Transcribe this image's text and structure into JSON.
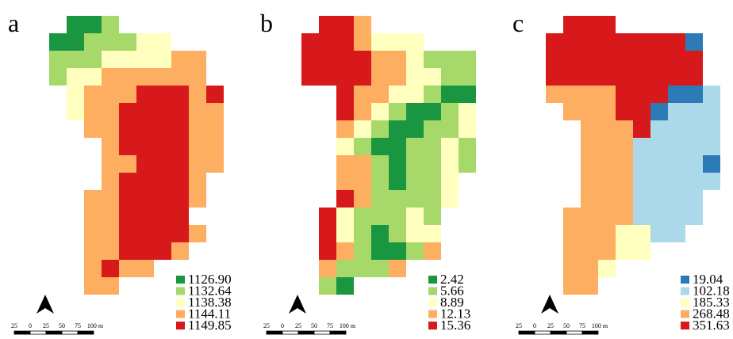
{
  "panels": [
    {
      "label": "a",
      "legend": {
        "labels": [
          "1126.90",
          "1132.64",
          "1138.38",
          "1144.11",
          "1149.85"
        ],
        "colors": [
          "#1a9641",
          "#a6d96a",
          "#ffffbf",
          "#fdae61",
          "#d7191c"
        ]
      },
      "scale_bar": [
        "25",
        "0",
        "25",
        "50",
        "75",
        "100 m"
      ]
    },
    {
      "label": "b",
      "legend": {
        "labels": [
          "2.42",
          "5.66",
          "8.89",
          "12.13",
          "15.36"
        ],
        "colors": [
          "#1a9641",
          "#a6d96a",
          "#ffffbf",
          "#fdae61",
          "#d7191c"
        ]
      },
      "scale_bar": [
        "25",
        "0",
        "25",
        "50",
        "75",
        "100 m"
      ]
    },
    {
      "label": "c",
      "legend": {
        "labels": [
          "19.04",
          "102.18",
          "185.33",
          "268.48",
          "351.63"
        ],
        "colors": [
          "#2c7bb6",
          "#abd9e9",
          "#ffffbf",
          "#fdae61",
          "#d7191c"
        ]
      },
      "scale_bar": [
        "25",
        "0",
        "25",
        "50",
        "75",
        "100 m"
      ]
    }
  ]
}
